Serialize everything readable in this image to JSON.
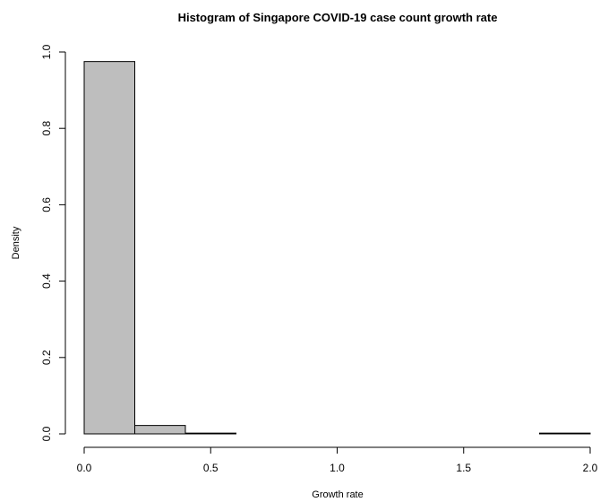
{
  "chart_data": {
    "type": "bar",
    "title": "Histogram of Singapore COVID-19 case count growth rate",
    "xlabel": "Growth rate",
    "ylabel": "Density",
    "xlim": [
      0,
      2
    ],
    "ylim": [
      0,
      1
    ],
    "x_ticks": [
      "0.0",
      "0.5",
      "1.0",
      "1.5",
      "2.0"
    ],
    "y_ticks": [
      "0.0",
      "0.2",
      "0.4",
      "0.6",
      "0.8",
      "1.0"
    ],
    "bin_edges": [
      0,
      0.2,
      0.4,
      0.6,
      0.8,
      1.0,
      1.2,
      1.4,
      1.6,
      1.8,
      2.0
    ],
    "values": [
      0.975,
      0.022,
      0.002,
      0,
      0,
      0,
      0,
      0,
      0,
      0.002
    ],
    "bar_color": "#bebebe",
    "grid": false
  }
}
